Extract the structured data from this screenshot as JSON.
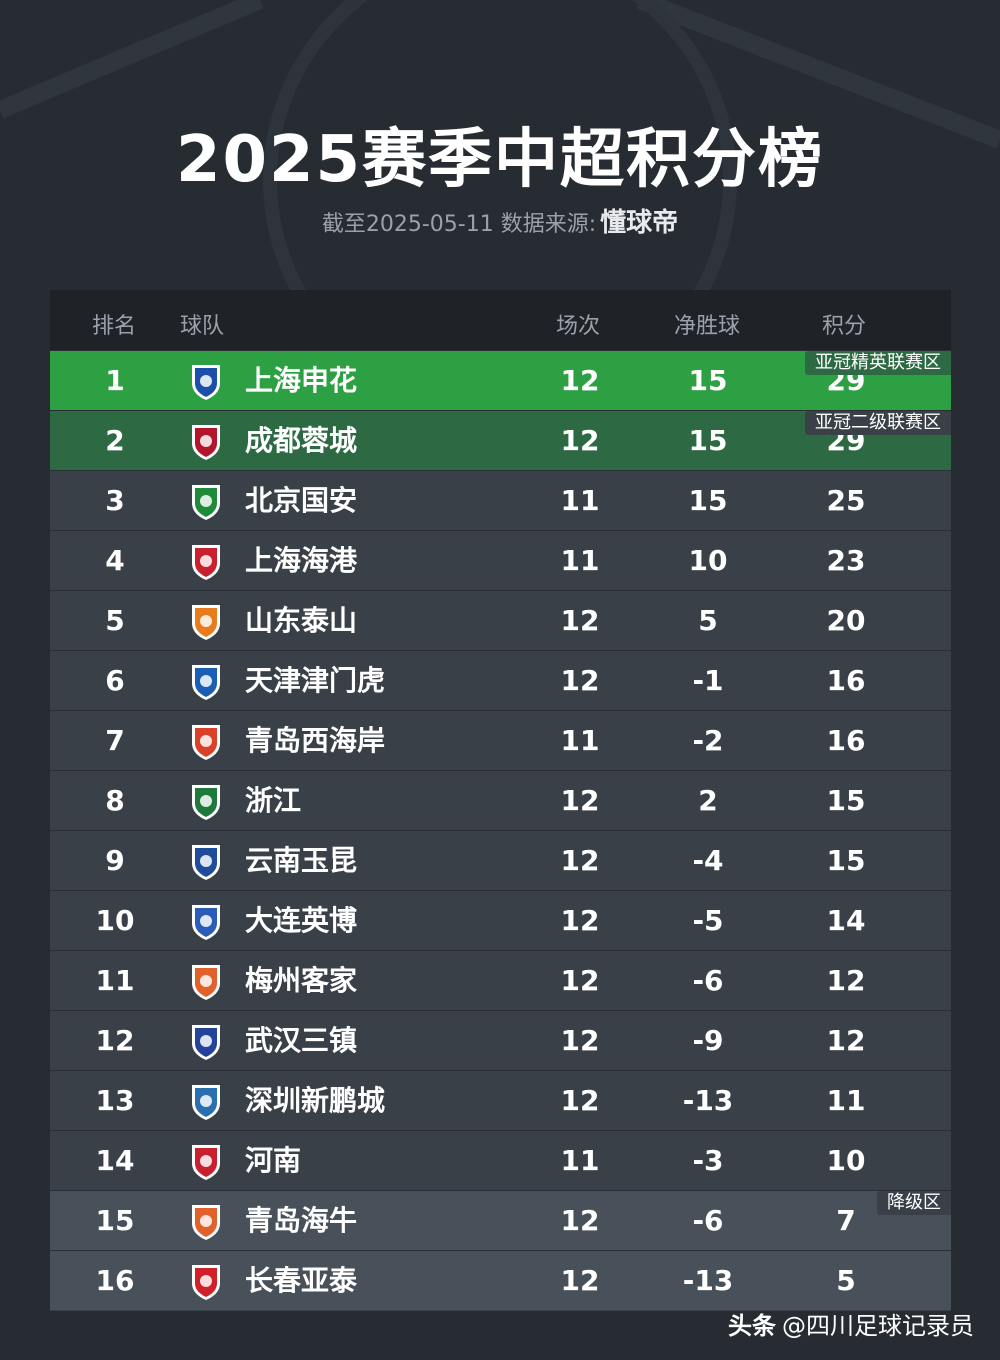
{
  "title": "2025赛季中超积分榜",
  "subtitle": {
    "text": "截至2025-05-11 数据来源:",
    "brand": "懂球帝"
  },
  "headers": {
    "rank": "排名",
    "team": "球队",
    "played": "场次",
    "gd": "净胜球",
    "pts": "积分"
  },
  "zones": {
    "acl_elite": "亚冠精英联赛区",
    "acl_two": "亚冠二级联赛区",
    "relegation": "降级区"
  },
  "colors": {
    "acl_elite": "#2ea044",
    "acl_two": "#2d6a44",
    "normal": "#3a4048",
    "relegation": "#48505a"
  },
  "rows": [
    {
      "rank": "1",
      "team": "上海申花",
      "played": "12",
      "gd": "15",
      "pts": "29",
      "logo": "shenhua-logo",
      "logo_color": "#1b4fa8"
    },
    {
      "rank": "2",
      "team": "成都蓉城",
      "played": "12",
      "gd": "15",
      "pts": "29",
      "logo": "chengdu-logo",
      "logo_color": "#b1162a"
    },
    {
      "rank": "3",
      "team": "北京国安",
      "played": "11",
      "gd": "15",
      "pts": "25",
      "logo": "guoan-logo",
      "logo_color": "#1f8a3a"
    },
    {
      "rank": "4",
      "team": "上海海港",
      "played": "11",
      "gd": "10",
      "pts": "23",
      "logo": "haigang-logo",
      "logo_color": "#c8202f"
    },
    {
      "rank": "5",
      "team": "山东泰山",
      "played": "12",
      "gd": "5",
      "pts": "20",
      "logo": "taishan-logo",
      "logo_color": "#e87b1e"
    },
    {
      "rank": "6",
      "team": "天津津门虎",
      "played": "12",
      "gd": "-1",
      "pts": "16",
      "logo": "jinmenhu-logo",
      "logo_color": "#1a5fb4"
    },
    {
      "rank": "7",
      "team": "青岛西海岸",
      "played": "11",
      "gd": "-2",
      "pts": "16",
      "logo": "xihaian-logo",
      "logo_color": "#d9412a"
    },
    {
      "rank": "8",
      "team": "浙江",
      "played": "12",
      "gd": "2",
      "pts": "15",
      "logo": "zhejiang-logo",
      "logo_color": "#1e7a3a"
    },
    {
      "rank": "9",
      "team": "云南玉昆",
      "played": "12",
      "gd": "-4",
      "pts": "15",
      "logo": "yukun-logo",
      "logo_color": "#1f4d99"
    },
    {
      "rank": "10",
      "team": "大连英博",
      "played": "12",
      "gd": "-5",
      "pts": "14",
      "logo": "yingbo-logo",
      "logo_color": "#2a5cb8"
    },
    {
      "rank": "11",
      "team": "梅州客家",
      "played": "12",
      "gd": "-6",
      "pts": "12",
      "logo": "kejia-logo",
      "logo_color": "#e0612a"
    },
    {
      "rank": "12",
      "team": "武汉三镇",
      "played": "12",
      "gd": "-9",
      "pts": "12",
      "logo": "sanzhen-logo",
      "logo_color": "#23449a"
    },
    {
      "rank": "13",
      "team": "深圳新鹏城",
      "played": "12",
      "gd": "-13",
      "pts": "11",
      "logo": "xinpengcheng-logo",
      "logo_color": "#2a6fb0"
    },
    {
      "rank": "14",
      "team": "河南",
      "played": "11",
      "gd": "-3",
      "pts": "10",
      "logo": "henan-logo",
      "logo_color": "#c8202f"
    },
    {
      "rank": "15",
      "team": "青岛海牛",
      "played": "12",
      "gd": "-6",
      "pts": "7",
      "logo": "hainiu-logo",
      "logo_color": "#e0612a"
    },
    {
      "rank": "16",
      "team": "长春亚泰",
      "played": "12",
      "gd": "-13",
      "pts": "5",
      "logo": "yatai-logo",
      "logo_color": "#d0202a"
    }
  ],
  "footer": {
    "prefix": "头条",
    "handle": "@四川足球记录员"
  }
}
